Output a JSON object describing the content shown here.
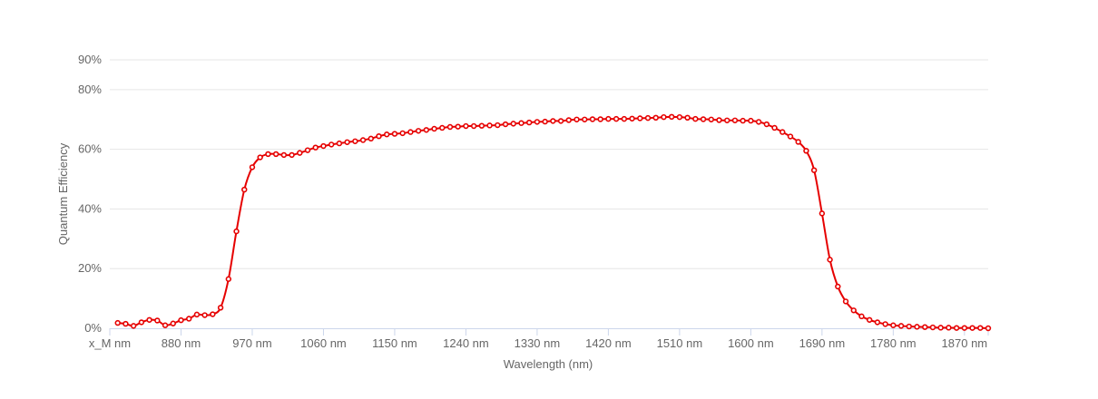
{
  "chart_data": {
    "type": "line",
    "title": "",
    "xlabel": "Wavelength (nm)",
    "ylabel": "Quantum Efficiency",
    "x_tick_labels": [
      "x_M nm",
      "880 nm",
      "970 nm",
      "1060 nm",
      "1150 nm",
      "1240 nm",
      "1330 nm",
      "1420 nm",
      "1510 nm",
      "1600 nm",
      "1690 nm",
      "1780 nm",
      "1870 nm"
    ],
    "x_tick_values": [
      790,
      880,
      970,
      1060,
      1150,
      1240,
      1330,
      1420,
      1510,
      1600,
      1690,
      1780,
      1870
    ],
    "y_tick_labels": [
      "0%",
      "20%",
      "40%",
      "60%",
      "80%",
      "90%"
    ],
    "y_tick_values": [
      0,
      20,
      40,
      60,
      80,
      90
    ],
    "xlim": [
      790,
      1900
    ],
    "ylim": [
      0,
      90
    ],
    "grid": "horizontal",
    "legend": "none",
    "color": "#e60000",
    "series": [
      {
        "x": [
          800,
          810,
          820,
          830,
          840,
          850,
          860,
          870,
          880,
          890,
          900,
          910,
          920,
          930,
          940,
          950,
          960,
          970,
          980,
          990,
          1000,
          1010,
          1020,
          1030,
          1040,
          1050,
          1060,
          1070,
          1080,
          1090,
          1100,
          1110,
          1120,
          1130,
          1140,
          1150,
          1160,
          1170,
          1180,
          1190,
          1200,
          1210,
          1220,
          1230,
          1240,
          1250,
          1260,
          1270,
          1280,
          1290,
          1300,
          1310,
          1320,
          1330,
          1340,
          1350,
          1360,
          1370,
          1380,
          1390,
          1400,
          1410,
          1420,
          1430,
          1440,
          1450,
          1460,
          1470,
          1480,
          1490,
          1500,
          1510,
          1520,
          1530,
          1540,
          1550,
          1560,
          1570,
          1580,
          1590,
          1600,
          1610,
          1620,
          1630,
          1640,
          1650,
          1660,
          1670,
          1680,
          1690,
          1700,
          1710,
          1720,
          1730,
          1740,
          1750,
          1760,
          1770,
          1780,
          1790,
          1800,
          1810,
          1820,
          1830,
          1840,
          1850,
          1860,
          1870,
          1880,
          1890,
          1900
        ],
        "values": [
          1.8,
          1.5,
          0.8,
          2.0,
          2.8,
          2.6,
          1.0,
          1.6,
          2.7,
          3.2,
          4.6,
          4.4,
          4.7,
          6.9,
          16.5,
          32.5,
          46.5,
          54.0,
          57.3,
          58.4,
          58.4,
          58.1,
          58.1,
          58.8,
          59.7,
          60.6,
          61.1,
          61.6,
          62.0,
          62.4,
          62.7,
          63.1,
          63.6,
          64.4,
          65.0,
          65.2,
          65.4,
          65.8,
          66.2,
          66.5,
          66.9,
          67.2,
          67.5,
          67.6,
          67.8,
          67.8,
          67.9,
          68.0,
          68.1,
          68.4,
          68.6,
          68.8,
          69.0,
          69.2,
          69.3,
          69.5,
          69.5,
          69.8,
          70.0,
          70.0,
          70.1,
          70.1,
          70.2,
          70.2,
          70.2,
          70.3,
          70.4,
          70.5,
          70.6,
          70.8,
          70.9,
          70.8,
          70.6,
          70.2,
          70.1,
          70.0,
          69.8,
          69.7,
          69.7,
          69.6,
          69.6,
          69.2,
          68.4,
          67.2,
          65.8,
          64.3,
          62.5,
          59.5,
          53.0,
          38.5,
          23.0,
          14.0,
          9.0,
          6.0,
          4.0,
          2.8,
          2.0,
          1.4,
          1.0,
          0.8,
          0.6,
          0.5,
          0.4,
          0.3,
          0.2,
          0.2,
          0.1,
          0.1,
          0.1,
          0.1,
          0.0
        ]
      }
    ]
  }
}
